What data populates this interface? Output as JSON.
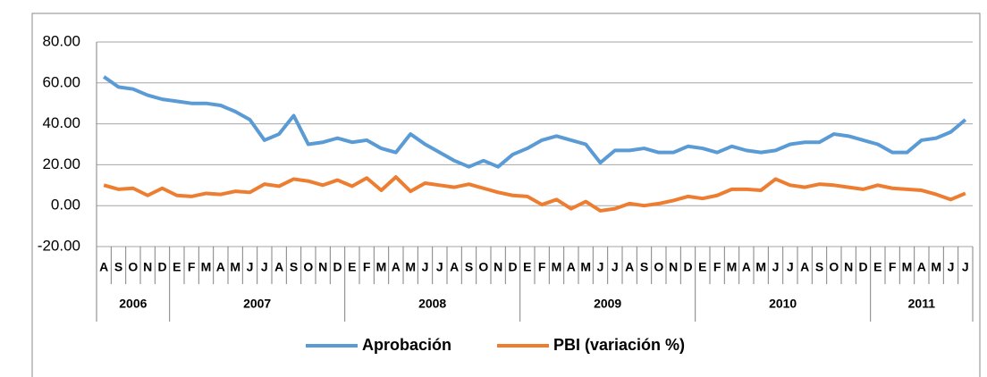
{
  "chart_data": {
    "type": "line",
    "category_groups": [
      {
        "label": "2006",
        "categories": [
          "A",
          "S",
          "O",
          "N",
          "D"
        ]
      },
      {
        "label": "2007",
        "categories": [
          "E",
          "F",
          "M",
          "A",
          "M",
          "J",
          "J",
          "A",
          "S",
          "O",
          "N",
          "D"
        ]
      },
      {
        "label": "2008",
        "categories": [
          "E",
          "F",
          "M",
          "A",
          "M",
          "J",
          "J",
          "A",
          "S",
          "O",
          "N",
          "D"
        ]
      },
      {
        "label": "2009",
        "categories": [
          "E",
          "F",
          "M",
          "A",
          "M",
          "J",
          "J",
          "A",
          "S",
          "O",
          "N",
          "D"
        ]
      },
      {
        "label": "2010",
        "categories": [
          "E",
          "F",
          "M",
          "A",
          "M",
          "J",
          "J",
          "A",
          "S",
          "O",
          "N",
          "D"
        ]
      },
      {
        "label": "2011",
        "categories": [
          "E",
          "F",
          "M",
          "A",
          "M",
          "J",
          "J"
        ]
      }
    ],
    "series": [
      {
        "name": "Aprobación",
        "color": "#5b9bd5",
        "values": [
          63,
          58,
          57,
          54,
          52,
          51,
          50,
          50,
          49,
          46,
          42,
          32,
          35,
          44,
          30,
          31,
          33,
          31,
          32,
          28,
          26,
          35,
          30,
          26,
          22,
          19,
          22,
          19,
          25,
          28,
          32,
          34,
          32,
          30,
          21,
          27,
          27,
          28,
          26,
          26,
          29,
          28,
          26,
          29,
          27,
          26,
          27,
          30,
          31,
          31,
          35,
          34,
          32,
          30,
          26,
          26,
          32,
          33,
          36,
          42
        ]
      },
      {
        "name": "PBI (variación %)",
        "color": "#ed7d31",
        "values": [
          10,
          8,
          8.5,
          5,
          8.5,
          5,
          4.5,
          6,
          5.5,
          7,
          6.5,
          10.5,
          9.5,
          13,
          12,
          10,
          12.5,
          9.5,
          13.5,
          7.5,
          14,
          7,
          11,
          10,
          9,
          10.5,
          8.5,
          6.5,
          5,
          4.5,
          0.5,
          3,
          -1.5,
          2,
          -2.5,
          -1.5,
          1,
          0,
          1,
          2.5,
          4.5,
          3.5,
          5,
          8,
          8,
          7.5,
          13,
          10,
          9,
          10.5,
          10,
          9,
          8,
          10,
          8.5,
          8,
          7.5,
          5.5,
          3,
          6
        ]
      }
    ],
    "ylim": [
      -20,
      80
    ],
    "yticks": [
      {
        "value": -20,
        "label": "-20.00"
      },
      {
        "value": 0,
        "label": "0.00"
      },
      {
        "value": 20,
        "label": "20.00"
      },
      {
        "value": 40,
        "label": "40.00"
      },
      {
        "value": 60,
        "label": "60.00"
      },
      {
        "value": 80,
        "label": "80.00"
      }
    ],
    "grid": true,
    "legend": "bottom"
  }
}
